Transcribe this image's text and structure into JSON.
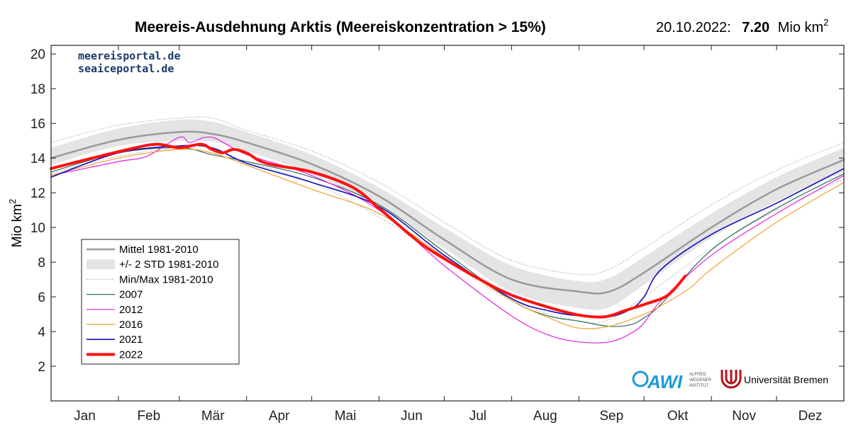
{
  "header": {
    "title": "Meereis-Ausdehnung Arktis (Meereiskonzentration > 15%)",
    "date": "20.10.2022:",
    "value": "7.20",
    "unit": "Mio km",
    "unit_sup": "2"
  },
  "portal": {
    "line1": "meereisportal.de",
    "line2": "seaiceportal.de"
  },
  "logos": {
    "awi_text": "AWI",
    "awi_sub": [
      "ALFRED",
      "WEGENER",
      "INSTITUT"
    ],
    "uni_text": "Universität Bremen",
    "uni_color": "#b5121b",
    "awi_color": "#1a9bd7"
  },
  "chart_data": {
    "type": "line",
    "title": "Meereis-Ausdehnung Arktis (Meereiskonzentration > 15%)",
    "ylabel": "Mio km",
    "ylabel_sup": "2",
    "ylim": [
      0,
      20.5
    ],
    "yticks": [
      2,
      4,
      6,
      8,
      10,
      12,
      14,
      16,
      18,
      20
    ],
    "xlim": [
      1,
      366
    ],
    "months": [
      "Jan",
      "Feb",
      "Mär",
      "Apr",
      "Mai",
      "Jun",
      "Jul",
      "Aug",
      "Sep",
      "Okt",
      "Nov",
      "Dez"
    ],
    "x_unit": "day of year",
    "grid": false,
    "legend_position": "lower-left",
    "series": [
      {
        "name": "+/- 2 STD 1981-2010",
        "kind": "band",
        "color": "#e4e4e4",
        "x": [
          1,
          32,
          60,
          75,
          91,
          121,
          152,
          182,
          213,
          244,
          258,
          274,
          305,
          335,
          366
        ],
        "lower": [
          13.6,
          14.7,
          15.0,
          14.95,
          14.4,
          13.1,
          11.2,
          8.8,
          6.3,
          5.35,
          5.4,
          6.7,
          9.4,
          11.5,
          13.2
        ],
        "upper": [
          14.6,
          15.7,
          16.2,
          16.1,
          15.5,
          14.2,
          12.3,
          10.0,
          7.8,
          6.9,
          7.1,
          8.3,
          10.8,
          12.9,
          14.6
        ]
      },
      {
        "name": "Min/Max 1981-2010",
        "kind": "minmax",
        "color": "#9a9a9a",
        "x": [
          1,
          32,
          60,
          75,
          91,
          121,
          152,
          182,
          213,
          244,
          258,
          274,
          305,
          335,
          366
        ],
        "lower": [
          13.1,
          14.1,
          14.6,
          14.6,
          13.8,
          12.6,
          10.6,
          8.2,
          5.8,
          4.6,
          4.7,
          6.0,
          8.8,
          11.0,
          12.8
        ],
        "upper": [
          14.9,
          15.9,
          16.3,
          16.3,
          15.6,
          14.4,
          12.6,
          10.3,
          8.1,
          7.3,
          7.6,
          8.8,
          11.3,
          13.3,
          14.9
        ]
      },
      {
        "name": "Mittel 1981-2010",
        "kind": "line",
        "color": "#9a9a9a",
        "width": 2.5,
        "x": [
          1,
          32,
          60,
          75,
          91,
          121,
          152,
          182,
          213,
          244,
          258,
          274,
          305,
          335,
          366
        ],
        "y": [
          14.0,
          15.05,
          15.5,
          15.4,
          14.9,
          13.65,
          11.8,
          9.3,
          7.0,
          6.3,
          6.3,
          7.4,
          10.0,
          12.2,
          13.9
        ]
      },
      {
        "name": "2007",
        "kind": "line",
        "color": "#2e6e56",
        "width": 1.2,
        "x": [
          1,
          32,
          60,
          75,
          91,
          121,
          152,
          182,
          213,
          230,
          244,
          258,
          268,
          274,
          282,
          305,
          335,
          366
        ],
        "y": [
          13.2,
          14.3,
          14.6,
          14.2,
          13.8,
          12.9,
          11.3,
          8.6,
          5.8,
          4.9,
          4.6,
          4.3,
          4.4,
          4.8,
          5.6,
          8.7,
          11.1,
          13.1
        ]
      },
      {
        "name": "2012",
        "kind": "line",
        "color": "#e020e0",
        "width": 1.2,
        "x": [
          1,
          32,
          45,
          60,
          65,
          75,
          91,
          121,
          152,
          182,
          213,
          230,
          244,
          258,
          268,
          274,
          282,
          305,
          335,
          366
        ],
        "y": [
          13.0,
          13.8,
          14.1,
          15.2,
          14.9,
          15.2,
          14.2,
          13.0,
          11.0,
          7.8,
          4.9,
          3.8,
          3.4,
          3.4,
          3.9,
          4.5,
          5.8,
          8.4,
          10.8,
          13.0
        ]
      },
      {
        "name": "2016",
        "kind": "line",
        "color": "#f0a030",
        "width": 1.2,
        "x": [
          1,
          32,
          60,
          75,
          91,
          121,
          152,
          182,
          213,
          230,
          244,
          258,
          274,
          282,
          295,
          305,
          335,
          366
        ],
        "y": [
          13.0,
          14.0,
          14.5,
          14.3,
          13.6,
          12.2,
          10.8,
          8.3,
          5.8,
          4.8,
          4.2,
          4.3,
          5.0,
          5.5,
          6.5,
          7.6,
          10.3,
          12.6
        ]
      },
      {
        "name": "2021",
        "kind": "line",
        "color": "#1010c0",
        "width": 1.6,
        "x": [
          1,
          32,
          60,
          75,
          91,
          121,
          152,
          182,
          213,
          230,
          244,
          258,
          268,
          274,
          282,
          305,
          335,
          366
        ],
        "y": [
          12.9,
          14.3,
          14.7,
          14.6,
          13.7,
          12.6,
          11.2,
          8.4,
          5.9,
          5.2,
          4.9,
          4.85,
          5.3,
          6.0,
          7.6,
          9.6,
          11.4,
          13.4
        ]
      },
      {
        "name": "2022",
        "kind": "line",
        "color": "#ff1010",
        "width": 4,
        "x": [
          1,
          20,
          40,
          50,
          60,
          70,
          75,
          80,
          85,
          91,
          100,
          121,
          140,
          152,
          170,
          182,
          200,
          213,
          230,
          244,
          256,
          265,
          275,
          285,
          293
        ],
        "y": [
          13.4,
          14.0,
          14.6,
          14.8,
          14.6,
          14.8,
          14.5,
          14.3,
          14.5,
          14.3,
          13.7,
          13.2,
          12.3,
          11.1,
          9.2,
          8.2,
          6.9,
          6.1,
          5.4,
          4.95,
          4.85,
          5.2,
          5.6,
          6.1,
          7.2
        ]
      }
    ]
  },
  "legend": {
    "items": [
      {
        "label": "Mittel 1981-2010",
        "style": "line",
        "color": "#9a9a9a",
        "width": 2.5
      },
      {
        "label": "+/- 2 STD 1981-2010",
        "style": "band",
        "color": "#e4e4e4"
      },
      {
        "label": "Min/Max 1981-2010",
        "style": "dotted",
        "color": "#9a9a9a",
        "width": 1
      },
      {
        "label": "2007",
        "style": "line",
        "color": "#2e6e56",
        "width": 1.2
      },
      {
        "label": "2012",
        "style": "line",
        "color": "#e020e0",
        "width": 1.2
      },
      {
        "label": "2016",
        "style": "line",
        "color": "#f0a030",
        "width": 1.2
      },
      {
        "label": "2021",
        "style": "line",
        "color": "#1010c0",
        "width": 1.6
      },
      {
        "label": "2022",
        "style": "line",
        "color": "#ff1010",
        "width": 4
      }
    ]
  }
}
